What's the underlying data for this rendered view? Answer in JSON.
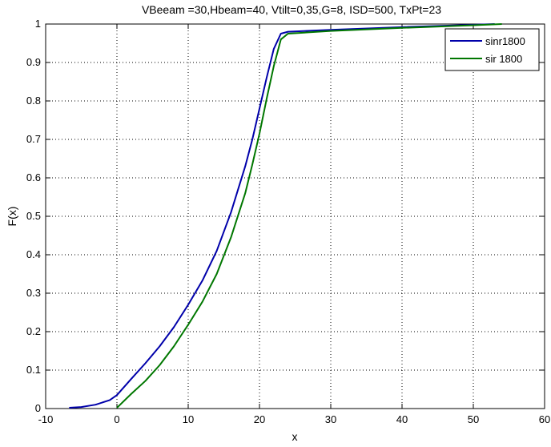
{
  "chart_data": {
    "type": "line",
    "title": "VBeeam =30,Hbeam=40, Vtilt=0,35,G=8, ISD=500, TxPt=23",
    "xlabel": "x",
    "ylabel": "F(x)",
    "xlim": [
      -10,
      60
    ],
    "ylim": [
      0,
      1
    ],
    "x_ticks": [
      "-10",
      "0",
      "10",
      "20",
      "30",
      "40",
      "50",
      "60"
    ],
    "y_ticks": [
      "0",
      "0.1",
      "0.2",
      "0.3",
      "0.4",
      "0.5",
      "0.6",
      "0.7",
      "0.8",
      "0.9",
      "1"
    ],
    "grid": true,
    "legend_position": "top-right",
    "series": [
      {
        "name": "sinr1800",
        "color": "#0000aa",
        "points": [
          [
            -6.7,
            0.002
          ],
          [
            -5,
            0.004
          ],
          [
            -3,
            0.01
          ],
          [
            -1,
            0.022
          ],
          [
            0,
            0.035
          ],
          [
            2,
            0.077
          ],
          [
            4,
            0.118
          ],
          [
            6,
            0.162
          ],
          [
            8,
            0.212
          ],
          [
            10,
            0.27
          ],
          [
            12,
            0.333
          ],
          [
            14,
            0.41
          ],
          [
            16,
            0.51
          ],
          [
            18,
            0.63
          ],
          [
            19,
            0.7
          ],
          [
            20,
            0.78
          ],
          [
            21,
            0.86
          ],
          [
            22,
            0.935
          ],
          [
            23,
            0.975
          ],
          [
            24,
            0.98
          ],
          [
            30,
            0.985
          ],
          [
            40,
            0.992
          ],
          [
            50,
            0.998
          ],
          [
            53,
            1.0
          ]
        ]
      },
      {
        "name": "sir 1800",
        "color": "#007700",
        "points": [
          [
            0,
            0.002
          ],
          [
            2,
            0.038
          ],
          [
            4,
            0.072
          ],
          [
            6,
            0.113
          ],
          [
            8,
            0.162
          ],
          [
            10,
            0.218
          ],
          [
            12,
            0.278
          ],
          [
            14,
            0.35
          ],
          [
            16,
            0.445
          ],
          [
            18,
            0.56
          ],
          [
            19,
            0.635
          ],
          [
            20,
            0.715
          ],
          [
            21,
            0.805
          ],
          [
            22,
            0.89
          ],
          [
            23,
            0.96
          ],
          [
            24,
            0.975
          ],
          [
            30,
            0.982
          ],
          [
            40,
            0.99
          ],
          [
            50,
            0.997
          ],
          [
            54,
            1.0
          ]
        ]
      }
    ]
  }
}
